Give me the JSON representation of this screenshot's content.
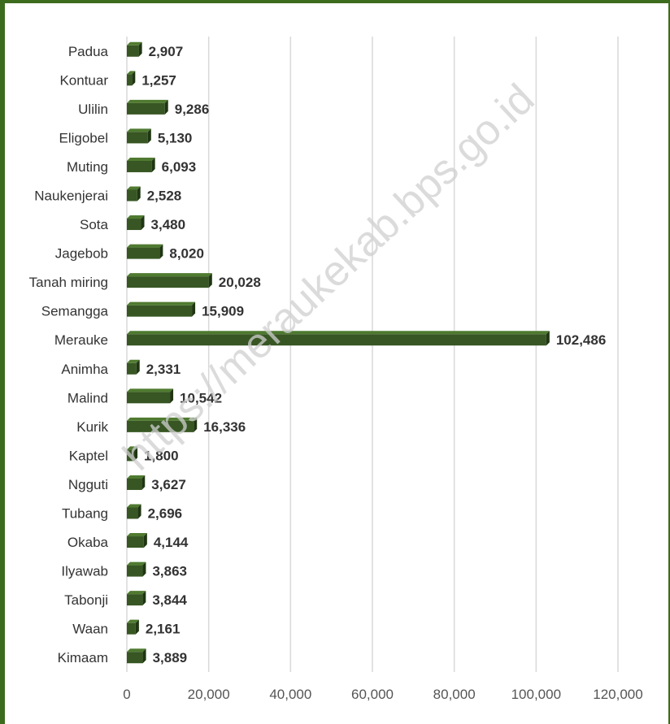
{
  "watermark": "https://meraukekab.bps.go.id",
  "colors": {
    "bar_front": "#375623",
    "bar_top": "#4f7a30",
    "bar_side": "#1f3612",
    "gridline": "#d9d9d9",
    "frame": "#3d6b1e"
  },
  "chart_data": {
    "type": "bar",
    "orientation": "horizontal",
    "style": "3d",
    "title": "",
    "xlabel": "",
    "ylabel": "",
    "categories": [
      "Padua",
      "Kontuar",
      "Ulilin",
      "Eligobel",
      "Muting",
      "Naukenjerai",
      "Sota",
      "Jagebob",
      "Tanah miring",
      "Semangga",
      "Merauke",
      "Animha",
      "Malind",
      "Kurik",
      "Kaptel",
      "Ngguti",
      "Tubang",
      "Okaba",
      "Ilyawab",
      "Tabonji",
      "Waan",
      "Kimaam"
    ],
    "values": [
      2907,
      1257,
      9286,
      5130,
      6093,
      2528,
      3480,
      8020,
      20028,
      15909,
      102486,
      2331,
      10542,
      16336,
      1800,
      3627,
      2696,
      4144,
      3863,
      3844,
      2161,
      3889
    ],
    "value_labels": [
      "2,907",
      "1,257",
      "9,286",
      "5,130",
      "6,093",
      "2,528",
      "3,480",
      "8,020",
      "20,028",
      "15,909",
      "102,486",
      "2,331",
      "10,542",
      "16,336",
      "1,800",
      "3,627",
      "2,696",
      "4,144",
      "3,863",
      "3,844",
      "2,161",
      "3,889"
    ],
    "xlim": [
      0,
      120000
    ],
    "ticks": [
      0,
      20000,
      40000,
      60000,
      80000,
      100000,
      120000
    ],
    "tick_labels": [
      "0",
      "20,000",
      "40,000",
      "60,000",
      "80,000",
      "100,000",
      "120,000"
    ],
    "grid": true,
    "legend": false
  }
}
